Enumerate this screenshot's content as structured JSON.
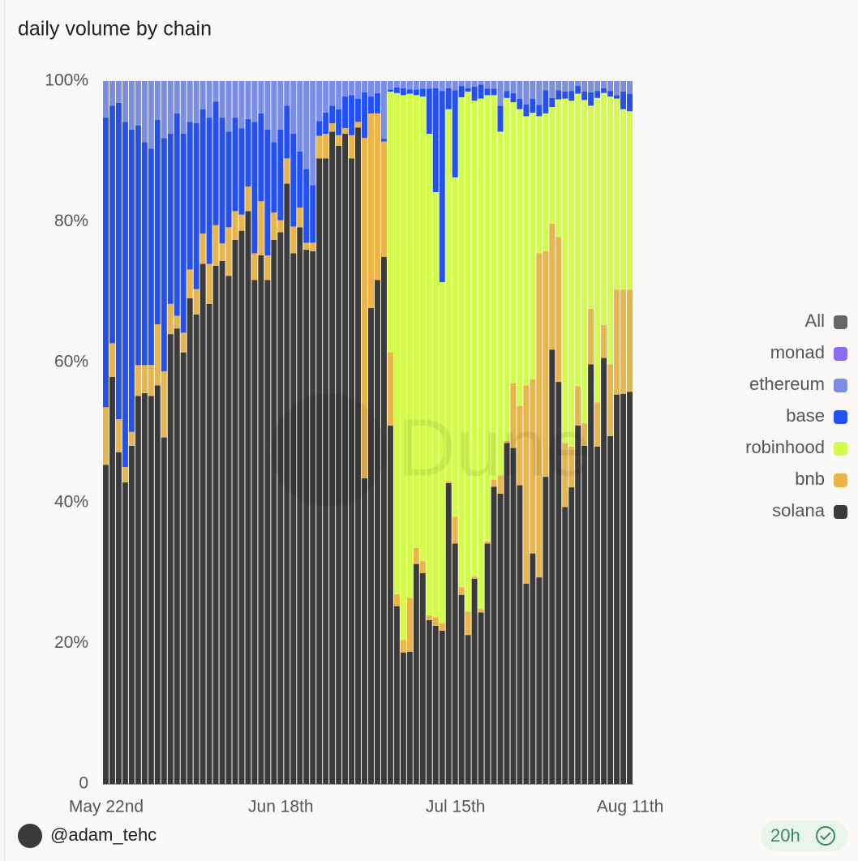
{
  "chart_data": {
    "type": "stacked_bar",
    "title": "daily volume by chain",
    "categories": [
      "May 22nd",
      null,
      null,
      null,
      null,
      null,
      null,
      null,
      null,
      null,
      null,
      null,
      null,
      null,
      null,
      null,
      null,
      null,
      null,
      null,
      null,
      null,
      null,
      null,
      null,
      null,
      null,
      "Jun 18th",
      null,
      null,
      null,
      null,
      null,
      null,
      null,
      null,
      null,
      null,
      null,
      null,
      null,
      null,
      null,
      null,
      null,
      null,
      null,
      null,
      null,
      null,
      null,
      null,
      null,
      null,
      "Jul 15th",
      null,
      null,
      null,
      null,
      null,
      null,
      null,
      null,
      null,
      null,
      null,
      null,
      null,
      null,
      null,
      null,
      null,
      null,
      null,
      null,
      null,
      null,
      null,
      null,
      null,
      null,
      "Aug 11th"
    ],
    "series": [
      {
        "name": "solana",
        "color": "#3b3b3b",
        "values": [
          45.4,
          57.9,
          47.2,
          42.9,
          48.1,
          55.2,
          55.6,
          55.2,
          56.7,
          49.3,
          64.0,
          64.8,
          61.4,
          69.1,
          66.8,
          74.0,
          68.3,
          73.7,
          74.4,
          72.3,
          77.4,
          78.7,
          81.5,
          71.7,
          75.2,
          71.7,
          77.4,
          78.5,
          85.4,
          75.5,
          79.2,
          76.0,
          75.8,
          89.0,
          89.0,
          92.8,
          90.8,
          92.5,
          89.0,
          93.4,
          43.5,
          67.7,
          71.7,
          75.0,
          51.0,
          25.3,
          18.7,
          18.8,
          31.3,
          30.0,
          23.3,
          22.5,
          21.8,
          42.8,
          34.2,
          26.9,
          21.2,
          29.2,
          24.4,
          34.2,
          42.3,
          41.3,
          48.5,
          47.8,
          42.5,
          28.5,
          32.8,
          29.4,
          43.7,
          61.8,
          57.2,
          39.4,
          42.2,
          51.0,
          48.1,
          59.7,
          48.0,
          60.6,
          49.5,
          55.4,
          55.5,
          55.8
        ]
      },
      {
        "name": "bnb",
        "color": "#e9b54a",
        "values": [
          8.2,
          4.8,
          4.7,
          2.2,
          2.0,
          4.4,
          4.0,
          4.4,
          8.7,
          9.4,
          4.3,
          1.8,
          2.8,
          4.1,
          3.6,
          4.3,
          5.7,
          5.8,
          2.5,
          6.9,
          4.1,
          2.3,
          3.5,
          3.8,
          7.7,
          3.5,
          3.9,
          1.7,
          3.6,
          3.8,
          2.8,
          1.0,
          1.2,
          3.2,
          3.5,
          1.2,
          1.5,
          0.8,
          3.3,
          0.8,
          48.4,
          27.7,
          23.7,
          16.4,
          10.4,
          1.7,
          1.8,
          7.7,
          2.3,
          1.7,
          0.7,
          1.2,
          1.1,
          0.3,
          3.8,
          1.1,
          3.3,
          0.3,
          0.5,
          0.3,
          1.0,
          2.6,
          0.3,
          9.2,
          11.3,
          28.2,
          24.8,
          46.1,
          32.1,
          17.9,
          20.6,
          9.1,
          5.8,
          5.6,
          3.2,
          7.9,
          6.3,
          4.7,
          10.2,
          14.9,
          14.8,
          14.5
        ]
      },
      {
        "name": "robinhood",
        "color": "#d3fb4a",
        "values": [
          0,
          0,
          0,
          0,
          0,
          0,
          0,
          0,
          0,
          0,
          0,
          0,
          0,
          0,
          0,
          0,
          0,
          0,
          0,
          0,
          0,
          0,
          0,
          0,
          0,
          0,
          0,
          0,
          0,
          0,
          0,
          0,
          0,
          0,
          0,
          0,
          0,
          0,
          0,
          0,
          0,
          0,
          0,
          0,
          37.1,
          71.3,
          77.5,
          71.7,
          64.4,
          66.1,
          68.5,
          60.5,
          48.5,
          52.9,
          48.3,
          69.7,
          74.0,
          67.7,
          72.6,
          63.5,
          54.7,
          48.9,
          48.8,
          40.0,
          42.2,
          38.3,
          37.9,
          19.5,
          19.6,
          16.6,
          19.6,
          49.0,
          49.2,
          41.6,
          46.0,
          28.9,
          43.3,
          33.0,
          38.1,
          27.2,
          25.7,
          25.4
        ]
      },
      {
        "name": "base",
        "color": "#2450f0",
        "values": [
          41.2,
          33.8,
          45.0,
          49.1,
          43.0,
          34.1,
          31.7,
          30.8,
          29.1,
          33.2,
          24.2,
          28.8,
          28.3,
          21.0,
          23.6,
          17.7,
          20.8,
          17.6,
          17.9,
          13.6,
          13.3,
          12.3,
          9.6,
          18.7,
          12.5,
          17.9,
          10.0,
          12.9,
          7.5,
          13.2,
          8.0,
          10.5,
          8.2,
          2.1,
          3.0,
          2.5,
          3.7,
          4.5,
          5.7,
          3.3,
          6.5,
          2.4,
          2.9,
          0.4,
          0.3,
          0.8,
          1.0,
          0.6,
          0.8,
          1.1,
          6.4,
          14.8,
          27.2,
          3.0,
          12.4,
          1.6,
          0.5,
          2.0,
          2.0,
          0.9,
          0.9,
          3.7,
          1.0,
          1.3,
          1.5,
          1.7,
          2.0,
          1.6,
          3.3,
          1.3,
          1.3,
          1.0,
          1.4,
          1.1,
          1.2,
          1.9,
          1.0,
          0.7,
          0.8,
          0.5,
          2.5,
          2.5
        ]
      },
      {
        "name": "ethereum",
        "color": "#7b8ee3",
        "values": [
          5.2,
          3.5,
          3.1,
          5.8,
          6.9,
          6.3,
          8.7,
          9.6,
          5.5,
          8.1,
          7.5,
          4.6,
          7.5,
          5.8,
          6.0,
          4.0,
          5.2,
          2.9,
          5.2,
          7.2,
          5.2,
          6.7,
          5.4,
          5.8,
          4.6,
          6.9,
          8.7,
          6.9,
          3.5,
          7.5,
          10.0,
          12.5,
          14.8,
          5.7,
          4.5,
          3.5,
          4.0,
          2.2,
          2.0,
          2.5,
          1.6,
          2.2,
          1.7,
          8.2,
          1.2,
          0.9,
          1.0,
          1.2,
          1.2,
          1.1,
          1.1,
          1.0,
          1.4,
          1.0,
          1.3,
          0.7,
          1.0,
          0.8,
          0.5,
          1.1,
          1.1,
          3.5,
          1.4,
          1.7,
          2.5,
          3.3,
          2.5,
          3.4,
          1.3,
          2.4,
          1.3,
          1.5,
          1.4,
          0.7,
          1.5,
          1.6,
          1.4,
          1.0,
          1.4,
          2.0,
          1.5,
          1.8
        ]
      },
      {
        "name": "monad",
        "color": "#8a6cf0",
        "values": [
          0,
          0,
          0,
          0,
          0,
          0,
          0,
          0,
          0,
          0,
          0,
          0,
          0,
          0,
          0,
          0,
          0,
          0,
          0,
          0,
          0,
          0,
          0,
          0,
          0,
          0,
          0,
          0,
          0,
          0,
          0,
          0,
          0,
          0,
          0,
          0,
          0,
          0,
          0,
          0,
          0,
          0,
          0,
          0,
          0,
          0,
          0,
          0,
          0,
          0,
          0,
          0,
          0,
          0,
          0,
          0,
          0,
          0,
          0,
          0,
          0,
          0,
          0,
          0,
          0,
          0,
          0,
          0,
          0,
          0,
          0,
          0,
          0,
          0,
          0,
          0,
          0,
          0,
          0,
          0,
          0,
          0
        ]
      }
    ],
    "legend_all": {
      "name": "All",
      "color": "#666666"
    },
    "ylim": [
      0,
      100
    ],
    "yticks": [
      0,
      {
        "value": 20,
        "label": "20%"
      },
      {
        "value": 40,
        "label": "40%"
      },
      {
        "value": 60,
        "label": "60%"
      },
      {
        "value": 80,
        "label": "80%"
      },
      {
        "value": 100,
        "label": "100%"
      }
    ],
    "grid": false,
    "legend": "right",
    "watermark": "Dune"
  },
  "footer": {
    "author": "@adam_tehc",
    "age": "20h"
  }
}
